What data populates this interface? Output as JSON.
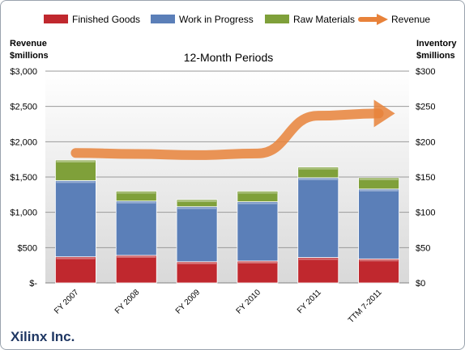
{
  "chart_data": {
    "type": "bar",
    "stacked": true,
    "categories": [
      "FY 2007",
      "FY 2008",
      "FY 2009",
      "FY 2010",
      "FY 2011",
      "TTM 7-2011"
    ],
    "series": [
      {
        "name": "Finished Goods",
        "axis": "right",
        "color": "#c0282e",
        "values": [
          37,
          39,
          30,
          31,
          36,
          34
        ]
      },
      {
        "name": "Work in Progress",
        "axis": "right",
        "color": "#5b7fb8",
        "values": [
          108,
          77,
          78,
          84,
          113,
          99
        ]
      },
      {
        "name": "Raw Materials",
        "axis": "right",
        "color": "#7fa03a",
        "values": [
          29,
          14,
          10,
          15,
          15,
          16
        ]
      },
      {
        "name": "Revenue",
        "axis": "left",
        "type": "line",
        "color": "#e8823a",
        "values": [
          1841,
          1826,
          1810,
          1834,
          2369,
          2400
        ]
      }
    ],
    "subtitle": "12-Month Periods",
    "left_axis": {
      "title_line1": "Revenue",
      "title_line2": "$millions",
      "ylim": [
        0,
        3000
      ],
      "tick_values": [
        0,
        500,
        1000,
        1500,
        2000,
        2500,
        3000
      ],
      "tick_labels": [
        "$-",
        "$500",
        "$1,000",
        "$1,500",
        "$2,000",
        "$2,500",
        "$3,000"
      ]
    },
    "right_axis": {
      "title_line1": "Inventory",
      "title_line2": "$millions",
      "ylim": [
        0,
        300
      ],
      "tick_values": [
        0,
        50,
        100,
        150,
        200,
        250,
        300
      ],
      "tick_labels": [
        "$0",
        "$50",
        "$100",
        "$150",
        "$200",
        "$250",
        "$300"
      ]
    },
    "company": "Xilinx Inc.",
    "legend_position": "top",
    "grid": true
  }
}
